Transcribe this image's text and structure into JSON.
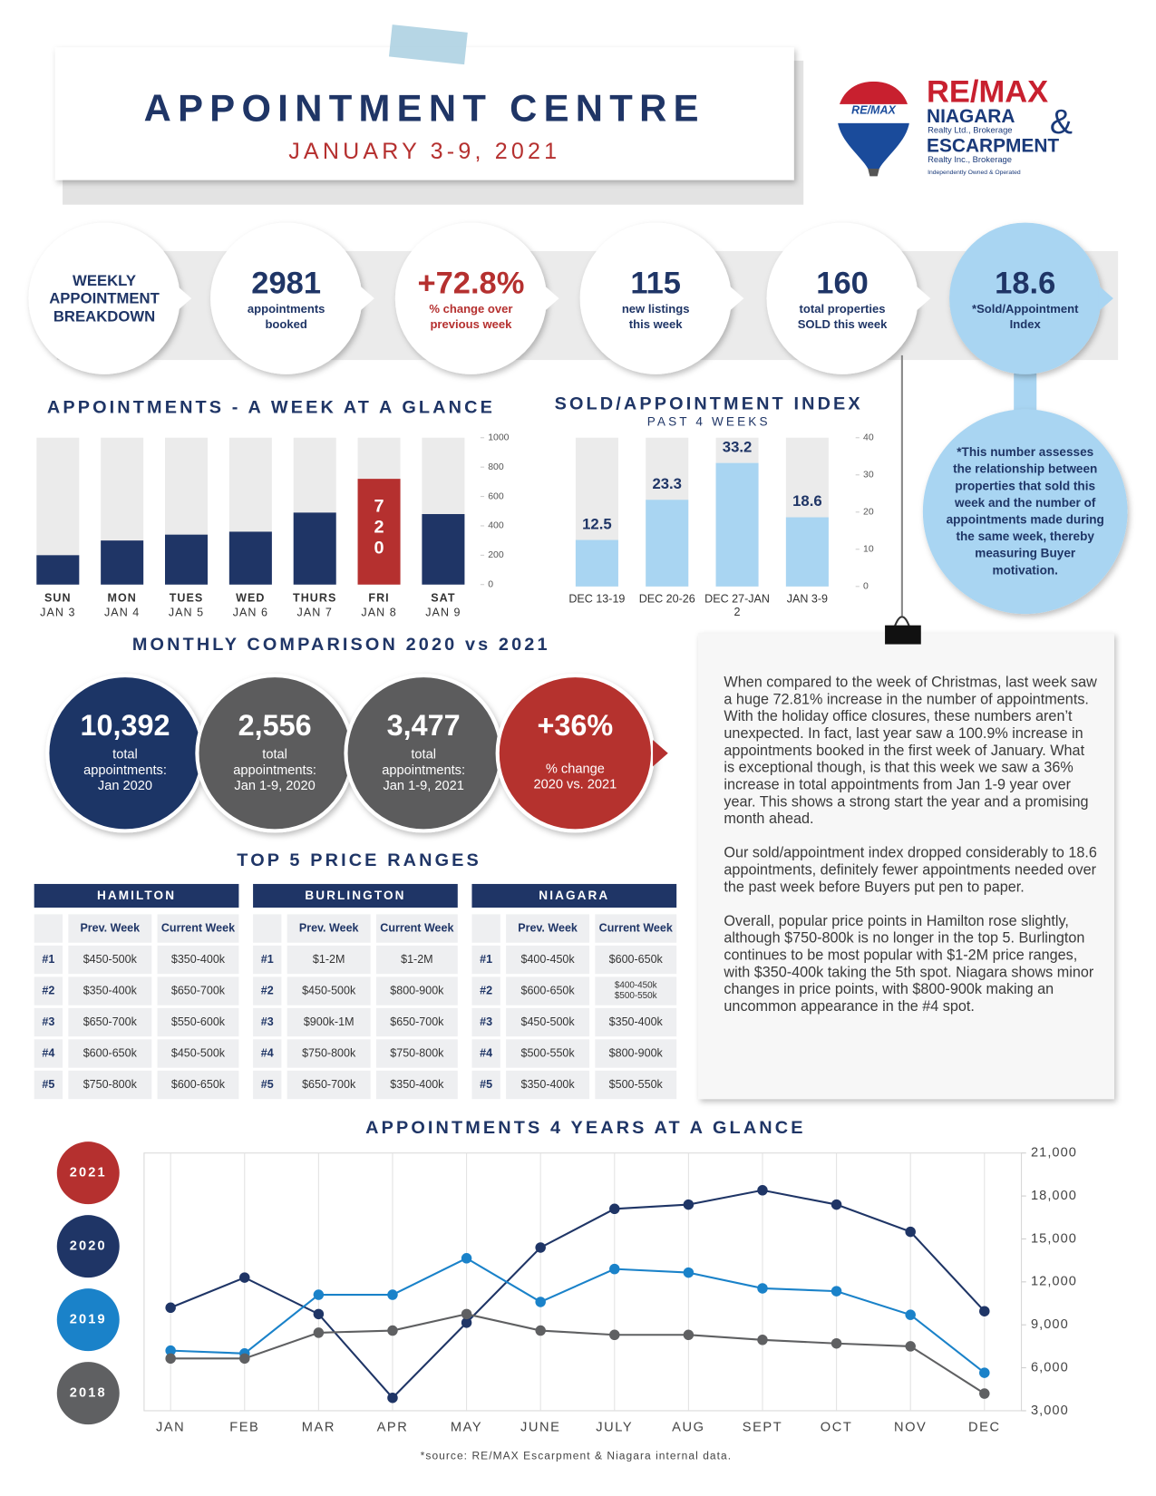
{
  "header": {
    "title": "APPOINTMENT CENTRE",
    "subtitle": "JANUARY 3-9, 2021"
  },
  "logo": {
    "balloon_text": "RE/MAX",
    "brand": "RE/MAX",
    "line1": "NIAGARA",
    "line1_sub": "Realty Ltd., Brokerage",
    "amp": "&",
    "line2": "ESCARPMENT",
    "line2_sub": "Realty Inc., Brokerage",
    "tagline": "Independently Owned & Operated"
  },
  "weekly": {
    "lines": [
      "WEEKLY",
      "APPOINTMENT",
      "BREAKDOWN"
    ]
  },
  "stats": [
    {
      "value": "2981",
      "lines": [
        "appointments",
        "booked"
      ],
      "color": "#1f3566"
    },
    {
      "value": "+72.8%",
      "lines": [
        "% change over",
        "previous week"
      ],
      "color": "#b5302f"
    },
    {
      "value": "115",
      "lines": [
        "new listings",
        "this week"
      ],
      "color": "#1f3566"
    },
    {
      "value": "160",
      "lines": [
        "total properties",
        "SOLD this week"
      ],
      "color": "#1f3566"
    },
    {
      "value": "18.6",
      "lines": [
        "*Sold/Appointment",
        "Index"
      ],
      "color": "#1f3566"
    }
  ],
  "index_note": {
    "lines": [
      "*This number assesses",
      "the relationship between",
      "properties that sold this",
      "week and the number of",
      "appointments made during",
      "the same week, thereby",
      "measuring Buyer",
      "motivation."
    ]
  },
  "monthly": {
    "title": "MONTHLY COMPARISON 2020 vs 2021",
    "items": [
      {
        "value": "10,392",
        "lines": [
          "total",
          "appointments:",
          "Jan 2020"
        ],
        "color": "#1f3566"
      },
      {
        "value": "2,556",
        "lines": [
          "total",
          "appointments:",
          "Jan 1-9, 2020"
        ],
        "color": "#5b5b5d"
      },
      {
        "value": "3,477",
        "lines": [
          "total",
          "appointments:",
          "Jan 1-9, 2021"
        ],
        "color": "#5b5b5d"
      },
      {
        "value": "+36%",
        "lines": [
          "% change",
          "2020 vs. 2021"
        ],
        "color": "#b5302f"
      }
    ]
  },
  "price_ranges": {
    "title": "TOP 5 PRICE RANGES",
    "columns": [
      "Prev. Week",
      "Current Week"
    ],
    "tables": [
      {
        "city": "HAMILTON",
        "rows": [
          {
            "rank": "#1",
            "prev": "$450-500k",
            "current": "$350-400k"
          },
          {
            "rank": "#2",
            "prev": "$350-400k",
            "current": "$650-700k"
          },
          {
            "rank": "#3",
            "prev": "$650-700k",
            "current": "$550-600k"
          },
          {
            "rank": "#4",
            "prev": "$600-650k",
            "current": "$450-500k"
          },
          {
            "rank": "#5",
            "prev": "$750-800k",
            "current": "$600-650k"
          }
        ]
      },
      {
        "city": "BURLINGTON",
        "rows": [
          {
            "rank": "#1",
            "prev": "$1-2M",
            "current": "$1-2M"
          },
          {
            "rank": "#2",
            "prev": "$450-500k",
            "current": "$800-900k"
          },
          {
            "rank": "#3",
            "prev": "$900k-1M",
            "current": "$650-700k"
          },
          {
            "rank": "#4",
            "prev": "$750-800k",
            "current": "$750-800k"
          },
          {
            "rank": "#5",
            "prev": "$650-700k",
            "current": "$350-400k"
          }
        ]
      },
      {
        "city": "NIAGARA",
        "rows": [
          {
            "rank": "#1",
            "prev": "$400-450k",
            "current": "$600-650k"
          },
          {
            "rank": "#2",
            "prev": "$600-650k",
            "current": [
              "$400-450k",
              "$500-550k"
            ]
          },
          {
            "rank": "#3",
            "prev": "$450-500k",
            "current": "$350-400k"
          },
          {
            "rank": "#4",
            "prev": "$500-550k",
            "current": "$800-900k"
          },
          {
            "rank": "#5",
            "prev": "$350-400k",
            "current": "$500-550k"
          }
        ]
      }
    ]
  },
  "commentary": {
    "paragraphs": [
      "When compared to the week of Christmas, last week saw a huge 72.81% increase in the number of appointments. With the holiday office closures, these numbers aren’t unexpected. In fact, last year saw a 100.9% increase in appointments booked in the first week of January. What is exceptional though, is that this week we saw a 36% increase in total appointments from Jan 1-9 year over year. This shows a strong start the year and a promising month ahead.",
      "Our sold/appointment index dropped considerably to 18.6 appointments, definitely fewer appointments needed over the past week before Buyers put pen to paper.",
      "Overall, popular price points in Hamilton rose slightly, although $750-800k is no longer in the top 5. Burlington continues to be most popular with $1-2M price ranges, with $350-400k taking the 5th spot. Niagara shows minor changes in price points, with $800-900k making an uncommon appearance in the #4 spot."
    ]
  },
  "source": "*source:  RE/MAX Escarpment & Niagara internal data.",
  "chart_data": [
    {
      "type": "bar",
      "title": "APPOINTMENTS - A WEEK AT A GLANCE",
      "categories": [
        "SUN",
        "MON",
        "TUES",
        "WED",
        "THURS",
        "FRI",
        "SAT"
      ],
      "dates": [
        "JAN 3",
        "JAN 4",
        "JAN 5",
        "JAN 6",
        "JAN 7",
        "JAN 8",
        "JAN 9"
      ],
      "values": [
        200,
        300,
        340,
        360,
        490,
        720,
        480
      ],
      "value_labels": [
        null,
        null,
        null,
        null,
        null,
        "720",
        null
      ],
      "colors": [
        "#1f3566",
        "#1f3566",
        "#1f3566",
        "#1f3566",
        "#1f3566",
        "#b5302f",
        "#1f3566"
      ],
      "track_color": "#ebebeb",
      "ylim": [
        0,
        1000
      ],
      "yticks": [
        0,
        200,
        400,
        600,
        800,
        1000
      ],
      "grid": false
    },
    {
      "type": "bar",
      "title": "SOLD/APPOINTMENT INDEX",
      "subtitle": "PAST 4 WEEKS",
      "categories": [
        "DEC 13-19",
        "DEC 20-26",
        "DEC 27-JAN 2",
        "JAN 3-9"
      ],
      "values": [
        12.5,
        23.3,
        33.2,
        18.6
      ],
      "color": "#a9d5f2",
      "track_color": "#ebebeb",
      "ylim": [
        0,
        40
      ],
      "yticks": [
        0,
        10,
        20,
        30,
        40
      ],
      "grid": false
    },
    {
      "type": "line",
      "title": "APPOINTMENTS 4 YEARS AT A GLANCE",
      "categories": [
        "JAN",
        "FEB",
        "MAR",
        "APR",
        "MAY",
        "JUNE",
        "JULY",
        "AUG",
        "SEPT",
        "OCT",
        "NOV",
        "DEC"
      ],
      "series": [
        {
          "name": "2021",
          "color": "#b5302f",
          "values": [
            null,
            null,
            null,
            null,
            null,
            null,
            null,
            null,
            null,
            null,
            null,
            null
          ]
        },
        {
          "name": "2020",
          "color": "#1f3566",
          "values": [
            10200,
            12300,
            9750,
            3900,
            9150,
            14400,
            17100,
            17400,
            18400,
            17400,
            15500,
            9950
          ]
        },
        {
          "name": "2019",
          "color": "#1a82c9",
          "values": [
            7200,
            7000,
            11100,
            11100,
            13650,
            10600,
            12900,
            12650,
            11550,
            11350,
            9700,
            5650
          ]
        },
        {
          "name": "2018",
          "color": "#5f6062",
          "values": [
            6650,
            6650,
            8450,
            8600,
            9750,
            8600,
            8300,
            8300,
            7950,
            7700,
            7500,
            4200
          ]
        }
      ],
      "ylim": [
        3000,
        21000
      ],
      "yticks": [
        {
          "value": 3000,
          "label": "3,000"
        },
        {
          "value": 6000,
          "label": "6,000"
        },
        {
          "value": 9000,
          "label": "9,000"
        },
        {
          "value": 12000,
          "label": "12,000"
        },
        {
          "value": 15000,
          "label": "15,000"
        },
        {
          "value": 18000,
          "label": "18,000"
        },
        {
          "value": 21000,
          "label": "21,000"
        }
      ],
      "grid": "x"
    }
  ]
}
